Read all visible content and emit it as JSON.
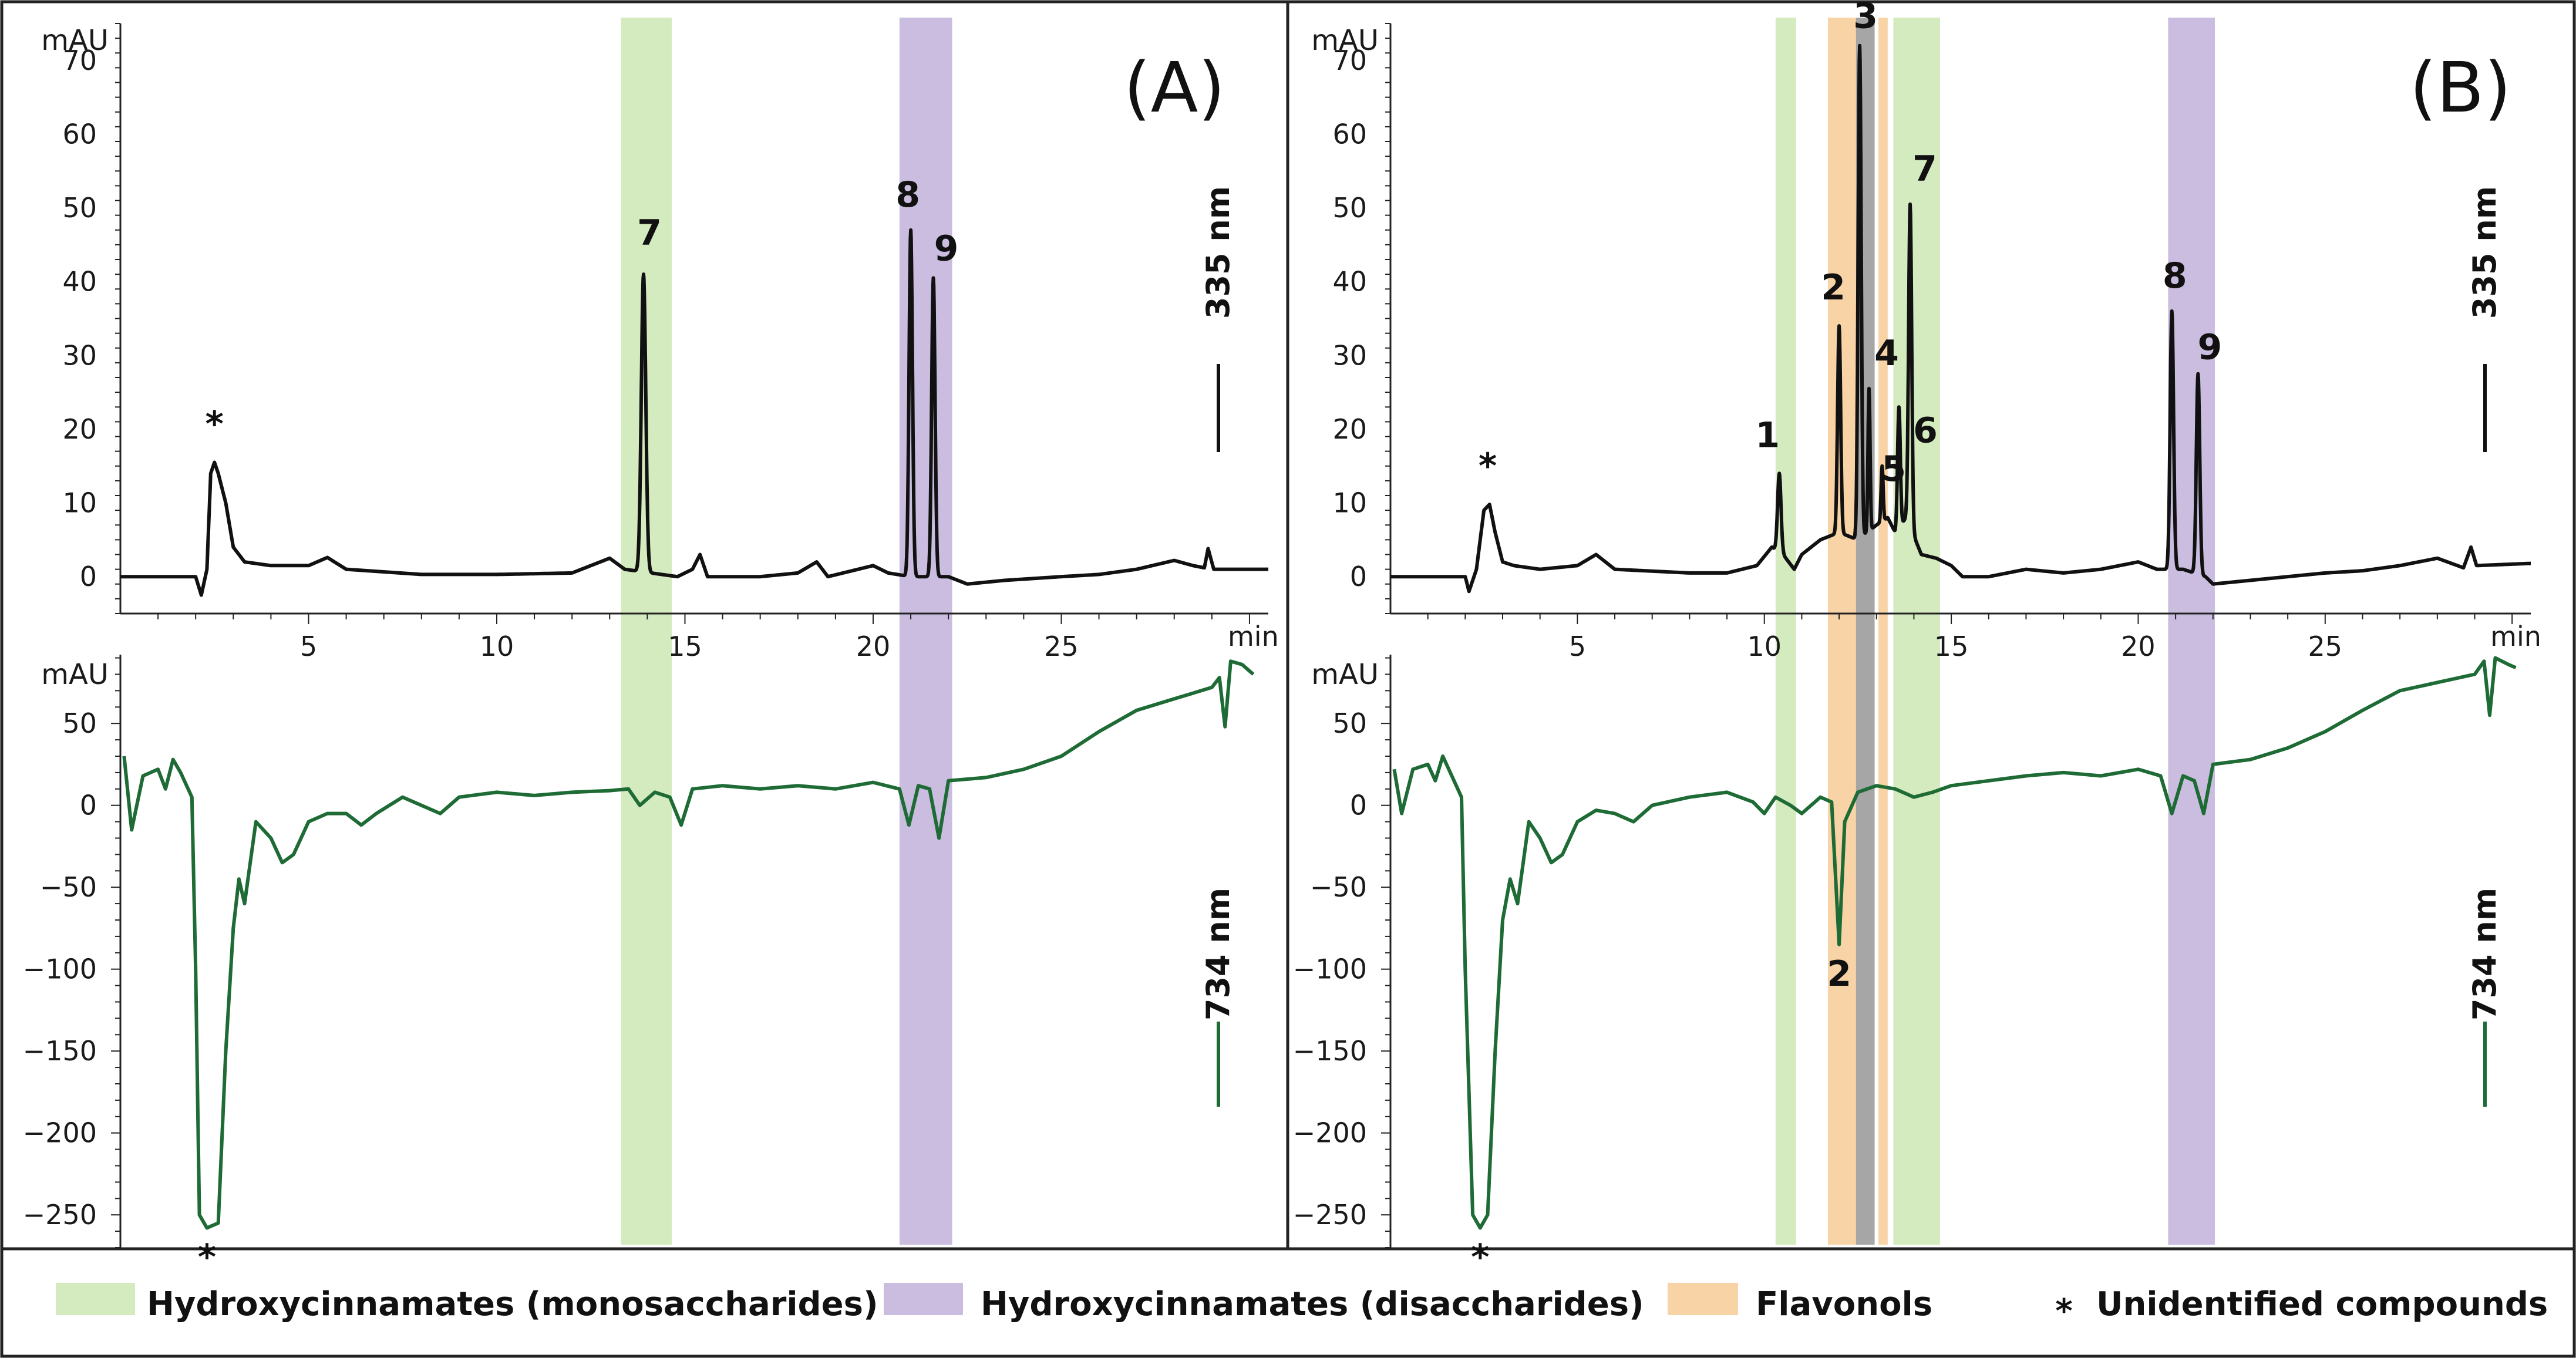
{
  "chart_data": [
    {
      "type": "line",
      "panel": "(A)",
      "x_unit": "min",
      "x_ticks": [
        5,
        10,
        15,
        20,
        25
      ],
      "xlim": [
        0,
        30.5
      ],
      "top": {
        "ylabel": "mAU",
        "ylim": [
          -5,
          75
        ],
        "y_ticks": [
          0,
          10,
          20,
          30,
          40,
          50,
          60,
          70
        ],
        "wavelength": "335 nm",
        "color": "#111111",
        "baseline": [
          [
            0,
            0
          ],
          [
            2,
            0
          ],
          [
            2.15,
            -2.5
          ],
          [
            2.3,
            1
          ],
          [
            2.4,
            14
          ],
          [
            2.5,
            15.5
          ],
          [
            2.6,
            14
          ],
          [
            2.8,
            10
          ],
          [
            3,
            4
          ],
          [
            3.3,
            2
          ],
          [
            4,
            1.5
          ],
          [
            5,
            1.5
          ],
          [
            5.5,
            2.6
          ],
          [
            6,
            1
          ],
          [
            8,
            0.3
          ],
          [
            10,
            0.3
          ],
          [
            12,
            0.5
          ],
          [
            13,
            2.5
          ],
          [
            13.4,
            1
          ],
          [
            14.8,
            0
          ],
          [
            15.2,
            1
          ],
          [
            15.4,
            3
          ],
          [
            15.6,
            0
          ],
          [
            17,
            0
          ],
          [
            18,
            0.5
          ],
          [
            18.5,
            2
          ],
          [
            18.8,
            0
          ],
          [
            20,
            1.5
          ],
          [
            20.4,
            0.5
          ],
          [
            21,
            0
          ],
          [
            22,
            0
          ],
          [
            22.5,
            -1
          ],
          [
            23.5,
            -0.5
          ],
          [
            25,
            0
          ],
          [
            26,
            0.3
          ],
          [
            27,
            1
          ],
          [
            28,
            2.2
          ],
          [
            28.5,
            1.5
          ],
          [
            28.8,
            1.2
          ],
          [
            28.9,
            3.8
          ],
          [
            29.05,
            1
          ],
          [
            30.5,
            1
          ]
        ],
        "peaks": [
          {
            "label": "*",
            "rt": 2.5,
            "height": 15.5,
            "width": 0.3
          },
          {
            "label": "7",
            "rt": 13.9,
            "height": 41,
            "width": 0.13
          },
          {
            "label": "8",
            "rt": 21.0,
            "height": 47,
            "width": 0.1
          },
          {
            "label": "9",
            "rt": 21.6,
            "height": 40.5,
            "width": 0.1
          }
        ]
      },
      "bottom": {
        "ylabel": "mAU",
        "ylim": [
          -270,
          92
        ],
        "y_ticks": [
          50,
          0,
          -50,
          -100,
          -150,
          -200,
          -250
        ],
        "wavelength": "734 nm",
        "color": "#1e6b36",
        "trace": [
          [
            0.1,
            30
          ],
          [
            0.3,
            -15
          ],
          [
            0.6,
            18
          ],
          [
            1.0,
            22
          ],
          [
            1.2,
            10
          ],
          [
            1.4,
            28
          ],
          [
            1.6,
            20
          ],
          [
            1.9,
            5
          ],
          [
            2.0,
            -100
          ],
          [
            2.1,
            -250
          ],
          [
            2.3,
            -258
          ],
          [
            2.6,
            -255
          ],
          [
            2.8,
            -150
          ],
          [
            3.0,
            -75
          ],
          [
            3.15,
            -45
          ],
          [
            3.3,
            -60
          ],
          [
            3.6,
            -10
          ],
          [
            4.0,
            -20
          ],
          [
            4.3,
            -35
          ],
          [
            4.6,
            -30
          ],
          [
            5.0,
            -10
          ],
          [
            5.5,
            -5
          ],
          [
            6.0,
            -5
          ],
          [
            6.4,
            -12
          ],
          [
            6.8,
            -5
          ],
          [
            7.5,
            5
          ],
          [
            8.0,
            0
          ],
          [
            8.5,
            -5
          ],
          [
            9.0,
            5
          ],
          [
            10,
            8
          ],
          [
            11,
            6
          ],
          [
            12,
            8
          ],
          [
            13,
            9
          ],
          [
            13.5,
            10
          ],
          [
            13.8,
            0
          ],
          [
            14.2,
            8
          ],
          [
            14.6,
            5
          ],
          [
            14.9,
            -12
          ],
          [
            15.2,
            10
          ],
          [
            16,
            12
          ],
          [
            17,
            10
          ],
          [
            18,
            12
          ],
          [
            19,
            10
          ],
          [
            20,
            14
          ],
          [
            20.7,
            10
          ],
          [
            20.95,
            -12
          ],
          [
            21.2,
            12
          ],
          [
            21.5,
            10
          ],
          [
            21.75,
            -20
          ],
          [
            22.0,
            15
          ],
          [
            23,
            17
          ],
          [
            24,
            22
          ],
          [
            25,
            30
          ],
          [
            26,
            45
          ],
          [
            27,
            58
          ],
          [
            28,
            65
          ],
          [
            29,
            72
          ],
          [
            29.2,
            78
          ],
          [
            29.35,
            48
          ],
          [
            29.5,
            88
          ],
          [
            29.8,
            86
          ],
          [
            30.1,
            80
          ]
        ],
        "dips": [
          {
            "label": "*",
            "rt": 2.3,
            "depth": -258
          }
        ]
      },
      "bands": [
        {
          "kind": "mono",
          "start": 13.3,
          "end": 14.65
        },
        {
          "kind": "di",
          "start": 20.7,
          "end": 22.1
        }
      ]
    },
    {
      "type": "line",
      "panel": "(B)",
      "x_unit": "min",
      "x_ticks": [
        5,
        10,
        15,
        20,
        25
      ],
      "xlim": [
        0,
        30.5
      ],
      "top": {
        "ylabel": "mAU",
        "ylim": [
          -5,
          75
        ],
        "y_ticks": [
          0,
          10,
          20,
          30,
          40,
          50,
          60,
          70
        ],
        "wavelength": "335 nm",
        "color": "#111111",
        "baseline": [
          [
            0,
            0
          ],
          [
            2,
            0
          ],
          [
            2.1,
            -2
          ],
          [
            2.3,
            1
          ],
          [
            2.5,
            9
          ],
          [
            2.65,
            9.8
          ],
          [
            2.8,
            6
          ],
          [
            3,
            2
          ],
          [
            3.3,
            1.5
          ],
          [
            4,
            1
          ],
          [
            5,
            1.5
          ],
          [
            5.5,
            3
          ],
          [
            6,
            1
          ],
          [
            8,
            0.5
          ],
          [
            9,
            0.5
          ],
          [
            9.8,
            1.5
          ],
          [
            10.2,
            4
          ],
          [
            10.5,
            3
          ],
          [
            10.8,
            1
          ],
          [
            11,
            3
          ],
          [
            11.5,
            5
          ],
          [
            12,
            6
          ],
          [
            12.5,
            5
          ],
          [
            13,
            7
          ],
          [
            13.3,
            8
          ],
          [
            13.5,
            6
          ],
          [
            13.8,
            8
          ],
          [
            14.2,
            3
          ],
          [
            14.6,
            2.5
          ],
          [
            15,
            1.5
          ],
          [
            15.3,
            0
          ],
          [
            16,
            0
          ],
          [
            17,
            1
          ],
          [
            18,
            0.5
          ],
          [
            19,
            1
          ],
          [
            20,
            2
          ],
          [
            20.5,
            1
          ],
          [
            21.2,
            1
          ],
          [
            21.8,
            0
          ],
          [
            22,
            -1
          ],
          [
            23,
            -0.5
          ],
          [
            24,
            0
          ],
          [
            25,
            0.5
          ],
          [
            26,
            0.8
          ],
          [
            27,
            1.5
          ],
          [
            28,
            2.5
          ],
          [
            28.7,
            1.2
          ],
          [
            28.9,
            4
          ],
          [
            29.05,
            1.5
          ],
          [
            30.5,
            1.8
          ]
        ],
        "peaks": [
          {
            "label": "*",
            "rt": 2.6,
            "height": 9.8,
            "width": 0.25
          },
          {
            "label": "1",
            "rt": 10.4,
            "height": 14,
            "width": 0.1
          },
          {
            "label": "2",
            "rt": 12.0,
            "height": 34,
            "width": 0.09
          },
          {
            "label": "3",
            "rt": 12.55,
            "height": 72,
            "width": 0.09
          },
          {
            "label": "4",
            "rt": 12.8,
            "height": 25.5,
            "width": 0.06
          },
          {
            "label": "5",
            "rt": 13.15,
            "height": 15,
            "width": 0.06
          },
          {
            "label": "6",
            "rt": 13.6,
            "height": 23,
            "width": 0.08
          },
          {
            "label": "7",
            "rt": 13.9,
            "height": 50.5,
            "width": 0.09
          },
          {
            "label": "8",
            "rt": 20.9,
            "height": 36,
            "width": 0.1
          },
          {
            "label": "9",
            "rt": 21.6,
            "height": 27.5,
            "width": 0.1
          }
        ]
      },
      "bottom": {
        "ylabel": "mAU",
        "ylim": [
          -270,
          92
        ],
        "y_ticks": [
          50,
          0,
          -50,
          -100,
          -150,
          -200,
          -250
        ],
        "wavelength": "734 nm",
        "color": "#1e6b36",
        "trace": [
          [
            0.1,
            22
          ],
          [
            0.3,
            -5
          ],
          [
            0.6,
            22
          ],
          [
            1.0,
            25
          ],
          [
            1.2,
            15
          ],
          [
            1.4,
            30
          ],
          [
            1.6,
            20
          ],
          [
            1.9,
            5
          ],
          [
            2.0,
            -100
          ],
          [
            2.2,
            -250
          ],
          [
            2.4,
            -258
          ],
          [
            2.6,
            -250
          ],
          [
            2.8,
            -150
          ],
          [
            3.0,
            -70
          ],
          [
            3.2,
            -45
          ],
          [
            3.4,
            -60
          ],
          [
            3.7,
            -10
          ],
          [
            4.0,
            -20
          ],
          [
            4.3,
            -35
          ],
          [
            4.6,
            -30
          ],
          [
            5.0,
            -10
          ],
          [
            5.5,
            -3
          ],
          [
            6,
            -5
          ],
          [
            6.5,
            -10
          ],
          [
            7,
            0
          ],
          [
            8,
            5
          ],
          [
            9,
            8
          ],
          [
            9.7,
            2
          ],
          [
            10,
            -5
          ],
          [
            10.3,
            5
          ],
          [
            10.7,
            0
          ],
          [
            11,
            -5
          ],
          [
            11.5,
            5
          ],
          [
            11.8,
            2
          ],
          [
            12.0,
            -85
          ],
          [
            12.15,
            -10
          ],
          [
            12.5,
            8
          ],
          [
            13,
            12
          ],
          [
            13.5,
            10
          ],
          [
            14,
            5
          ],
          [
            14.5,
            8
          ],
          [
            15,
            12
          ],
          [
            16,
            15
          ],
          [
            17,
            18
          ],
          [
            18,
            20
          ],
          [
            19,
            18
          ],
          [
            20,
            22
          ],
          [
            20.6,
            18
          ],
          [
            20.9,
            -5
          ],
          [
            21.2,
            18
          ],
          [
            21.5,
            15
          ],
          [
            21.75,
            -5
          ],
          [
            22,
            25
          ],
          [
            23,
            28
          ],
          [
            24,
            35
          ],
          [
            25,
            45
          ],
          [
            26,
            58
          ],
          [
            27,
            70
          ],
          [
            28,
            75
          ],
          [
            29,
            80
          ],
          [
            29.25,
            88
          ],
          [
            29.4,
            55
          ],
          [
            29.55,
            90
          ],
          [
            29.9,
            86
          ],
          [
            30.1,
            84
          ]
        ],
        "dips": [
          {
            "label": "2",
            "rt": 12.0,
            "depth": -85
          },
          {
            "label": "*",
            "rt": 2.4,
            "depth": -258
          }
        ]
      },
      "bands": [
        {
          "kind": "mono",
          "start": 10.3,
          "end": 10.85
        },
        {
          "kind": "flav",
          "start": 11.7,
          "end": 12.45
        },
        {
          "kind": "grey",
          "start": 12.45,
          "end": 12.95
        },
        {
          "kind": "flav",
          "start": 13.05,
          "end": 13.3
        },
        {
          "kind": "mono",
          "start": 13.45,
          "end": 14.7
        },
        {
          "kind": "di",
          "start": 20.8,
          "end": 22.05
        }
      ]
    }
  ],
  "band_colors": {
    "mono": "#d4ebbf",
    "di": "#cbbde0",
    "flav": "#f8d3a6",
    "grey": "#a6a6a6"
  },
  "legend": [
    {
      "kind": "mono",
      "label": "Hydroxycinnamates (monosaccharides)"
    },
    {
      "kind": "di",
      "label": "Hydroxycinnamates (disaccharides)"
    },
    {
      "kind": "flav",
      "label": "Flavonols"
    },
    {
      "kind": "asterisk",
      "symbol": "*",
      "label": "Unidentified compounds"
    }
  ]
}
